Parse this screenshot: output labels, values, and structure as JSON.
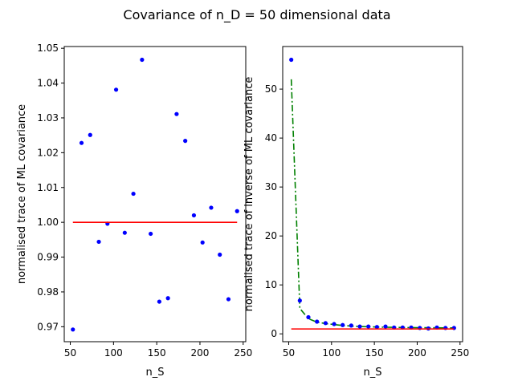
{
  "figure": {
    "title": "Covariance of n_D = 50 dimensional data"
  },
  "colors": {
    "points": "#0000ff",
    "reference_line": "#ff0000",
    "theory_curve": "#008000",
    "axes": "#000000",
    "background": "#ffffff"
  },
  "chart_data": [
    {
      "type": "scatter",
      "title": "",
      "xlabel": "n_S",
      "ylabel": "normalised trace of ML covariance",
      "xlim": [
        43,
        253
      ],
      "ylim": [
        0.9657,
        1.0505
      ],
      "xticks": [
        50,
        100,
        150,
        200,
        250
      ],
      "yticks": [
        0.97,
        0.98,
        0.99,
        1.0,
        1.01,
        1.02,
        1.03,
        1.04,
        1.05
      ],
      "ytick_labels": [
        "0.97",
        "0.98",
        "0.99",
        "1.00",
        "1.01",
        "1.02",
        "1.03",
        "1.04",
        "1.05"
      ],
      "grid": false,
      "series": [
        {
          "kind": "points",
          "color": "#0000ff",
          "x": [
            53,
            63,
            73,
            83,
            93,
            103,
            113,
            123,
            133,
            143,
            153,
            163,
            173,
            183,
            193,
            203,
            213,
            223,
            233,
            243
          ],
          "y": [
            0.9692,
            1.0228,
            1.0251,
            0.9944,
            0.9996,
            1.0381,
            0.997,
            1.0082,
            1.0467,
            0.9967,
            0.9772,
            0.9782,
            1.0311,
            1.0234,
            1.002,
            0.9942,
            1.0042,
            0.9907,
            0.9779,
            1.0032
          ]
        },
        {
          "kind": "line",
          "style": "solid",
          "color": "#ff0000",
          "x": [
            53,
            243
          ],
          "y": [
            1.0,
            1.0
          ]
        }
      ]
    },
    {
      "type": "scatter",
      "title": "",
      "xlabel": "n_S",
      "ylabel": "normalised trace of inverse of ML covariance",
      "xlim": [
        43,
        253
      ],
      "ylim": [
        -1.6,
        58.7
      ],
      "xticks": [
        50,
        100,
        150,
        200,
        250
      ],
      "yticks": [
        0,
        10,
        20,
        30,
        40,
        50
      ],
      "ytick_labels": [
        "0",
        "10",
        "20",
        "30",
        "40",
        "50"
      ],
      "grid": false,
      "series": [
        {
          "kind": "line",
          "style": "dashdot",
          "color": "#008000",
          "x": [
            53,
            63,
            73,
            83,
            93,
            103,
            113,
            123,
            133,
            143,
            153,
            163,
            173,
            183,
            193,
            203,
            213,
            223,
            233,
            243
          ],
          "y": [
            52.0,
            5.2,
            3.1,
            2.4,
            2.1,
            1.9,
            1.7,
            1.6,
            1.5,
            1.45,
            1.4,
            1.35,
            1.33,
            1.3,
            1.28,
            1.26,
            1.25,
            1.23,
            1.22,
            1.21
          ]
        },
        {
          "kind": "points",
          "color": "#0000ff",
          "x": [
            53,
            63,
            73,
            83,
            93,
            103,
            113,
            123,
            133,
            143,
            153,
            163,
            173,
            183,
            193,
            203,
            213,
            223,
            233,
            243
          ],
          "y": [
            56.0,
            6.8,
            3.4,
            2.5,
            2.2,
            2.0,
            1.8,
            1.7,
            1.5,
            1.5,
            1.4,
            1.5,
            1.3,
            1.3,
            1.3,
            1.2,
            1.1,
            1.3,
            1.2,
            1.2
          ]
        },
        {
          "kind": "line",
          "style": "solid",
          "color": "#ff0000",
          "x": [
            53,
            243
          ],
          "y": [
            1.0,
            1.0
          ]
        }
      ]
    }
  ]
}
